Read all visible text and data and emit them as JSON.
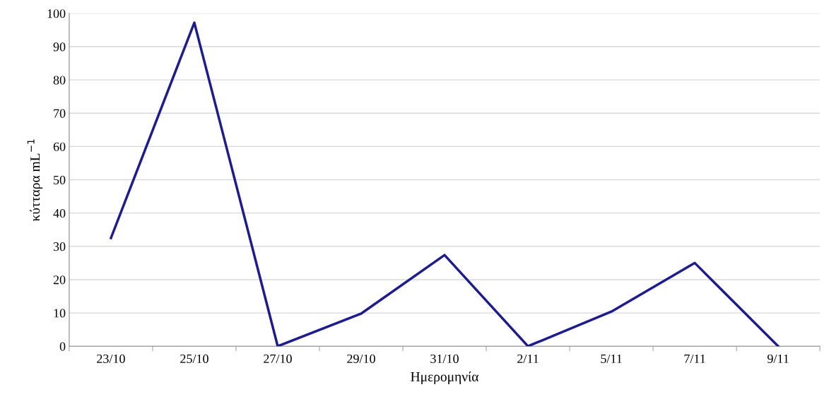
{
  "chart_data": {
    "type": "line",
    "xlabel": "Ημερομηνία",
    "ylabel": "κύτταρα mL$^{−1}$",
    "categories": [
      "23/10",
      "25/10",
      "27/10",
      "29/10",
      "31/10",
      "2/11",
      "5/11",
      "7/11",
      "9/11"
    ],
    "series": [
      {
        "color": "#1a1a9c",
        "values": [
          32.5,
          97.2,
          0,
          9.8,
          27.4,
          0,
          10.4,
          25.0,
          0
        ]
      }
    ],
    "ylim": [
      0,
      100
    ],
    "yticks": [
      0,
      10,
      20,
      30,
      40,
      50,
      60,
      70,
      80,
      90,
      100
    ],
    "grid": "y",
    "legend": false,
    "marker": "none",
    "line_style": "solid"
  }
}
